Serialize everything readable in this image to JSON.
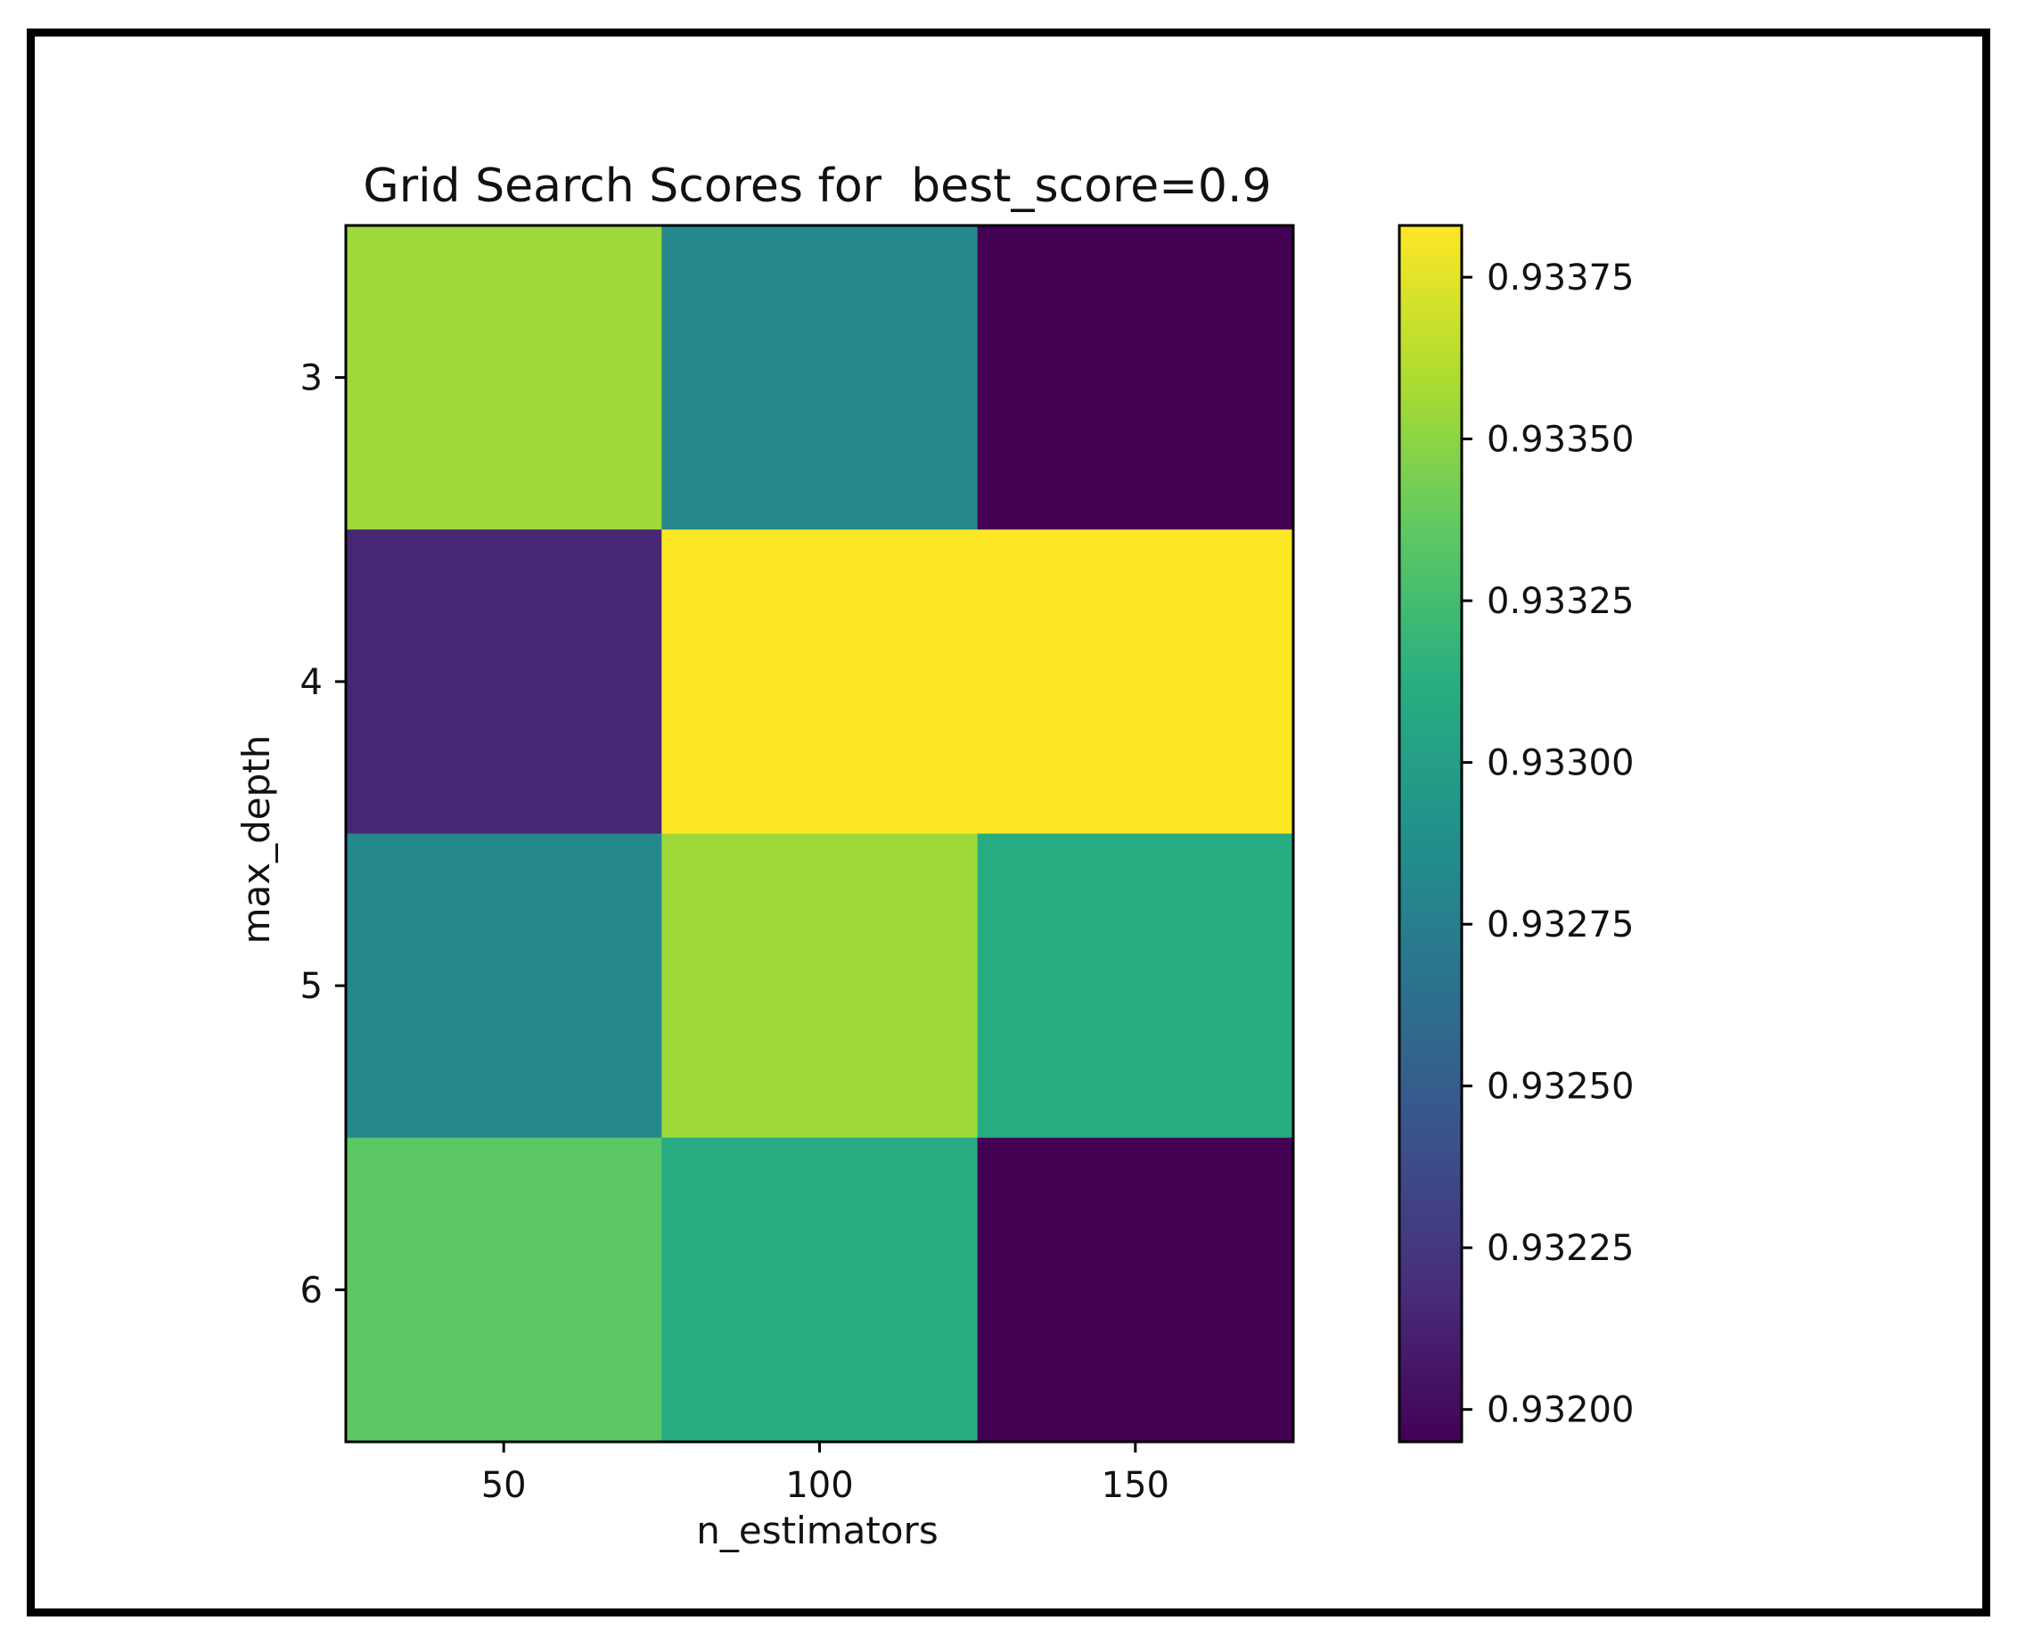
{
  "chart_data": {
    "type": "heatmap",
    "title": "Grid Search Scores for  best_score=0.9",
    "xlabel": "n_estimators",
    "ylabel": "max_depth",
    "x": [
      "50",
      "100",
      "150"
    ],
    "y": [
      "3",
      "4",
      "5",
      "6"
    ],
    "values": [
      [
        0.93355,
        0.93282,
        0.93195
      ],
      [
        0.93215,
        0.93383,
        0.93383
      ],
      [
        0.93282,
        0.93355,
        0.9331
      ],
      [
        0.93335,
        0.9331,
        0.93195
      ]
    ],
    "colormap": "viridis",
    "colorbar": {
      "range": [
        0.93195,
        0.93383
      ],
      "ticks": [
        "0.93200",
        "0.93225",
        "0.93250",
        "0.93275",
        "0.93300",
        "0.93325",
        "0.93350",
        "0.93375"
      ]
    },
    "grid": false,
    "legend": "colorbar-right"
  }
}
